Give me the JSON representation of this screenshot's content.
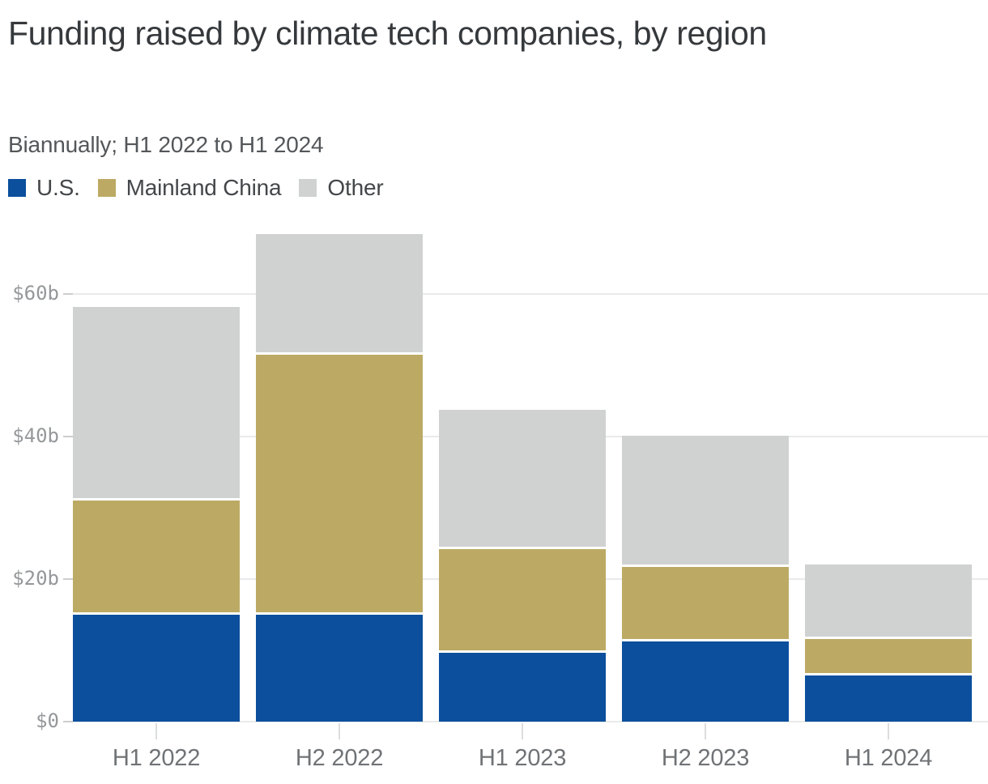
{
  "header": {
    "title": "Funding raised by climate tech companies, by region",
    "subtitle": "Biannually; H1 2022 to H1 2024"
  },
  "chart_data": {
    "type": "bar",
    "stacked": true,
    "title": "Funding raised by climate tech companies, by region",
    "subtitle": "Biannually; H1 2022 to H1 2024",
    "categories": [
      "H1 2022",
      "H2 2022",
      "H1 2023",
      "H2 2023",
      "H1 2024"
    ],
    "series": [
      {
        "name": "U.S.",
        "color": "#0b4f9d",
        "values": [
          15.0,
          15.0,
          9.7,
          11.3,
          6.5
        ]
      },
      {
        "name": "Mainland China",
        "color": "#bcaa64",
        "values": [
          16.0,
          36.5,
          14.5,
          10.4,
          5.1
        ]
      },
      {
        "name": "Other",
        "color": "#d0d2d1",
        "values": [
          27.2,
          16.9,
          19.6,
          18.4,
          10.5
        ]
      }
    ],
    "y_ticks": [
      {
        "value": 0,
        "label": "$0"
      },
      {
        "value": 20,
        "label": "$20b"
      },
      {
        "value": 40,
        "label": "$40b"
      },
      {
        "value": 60,
        "label": "$60b"
      }
    ],
    "ylim": [
      0,
      70
    ],
    "xlabel": "",
    "ylabel": "",
    "grid": "horizontal",
    "legend_position": "top-left"
  }
}
